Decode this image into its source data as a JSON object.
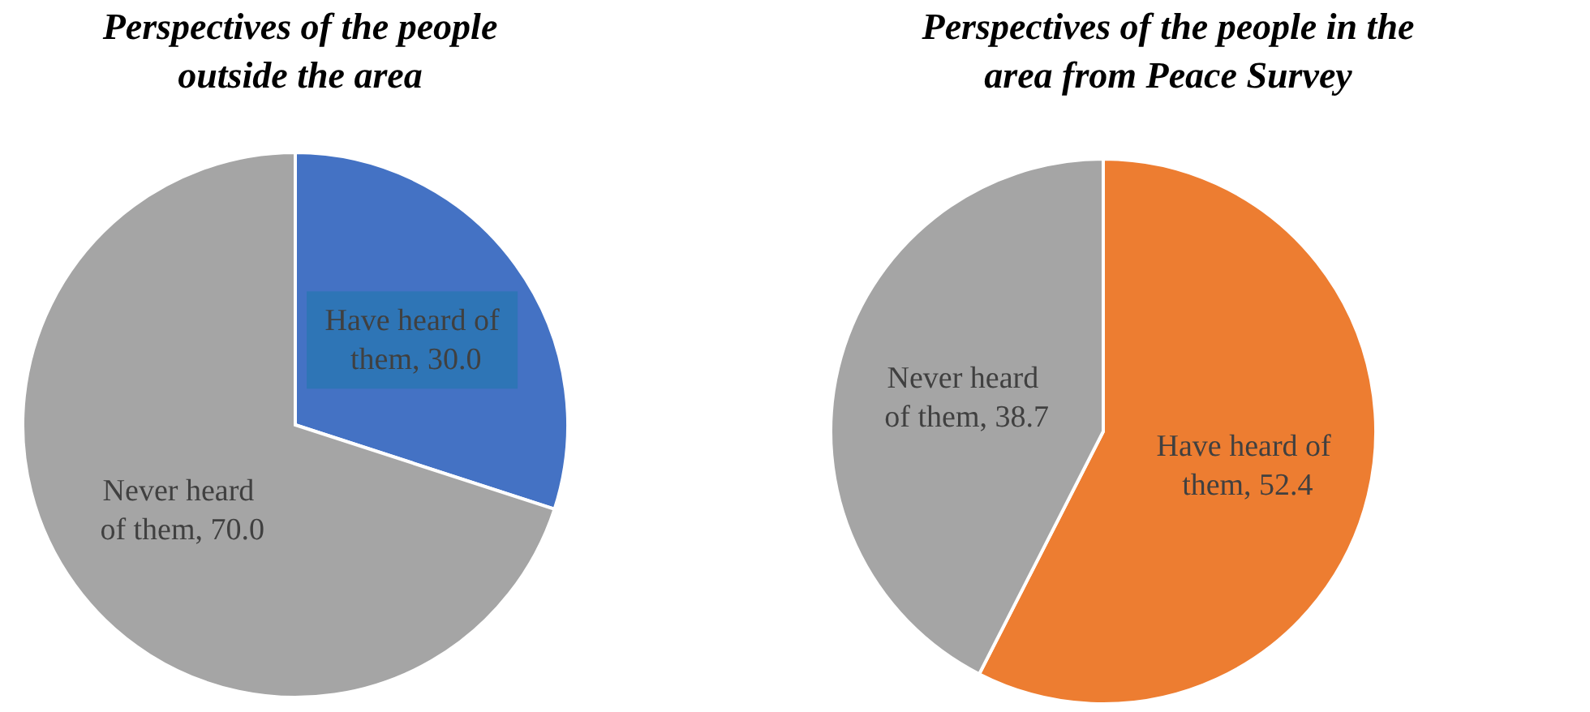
{
  "chart_data": [
    {
      "type": "pie",
      "title": "Perspectives of the people outside the area",
      "categories": [
        "Have heard of them",
        "Never heard of them"
      ],
      "values": [
        30.0,
        70.0
      ],
      "value_labels": [
        "30.0",
        "70.0"
      ],
      "colors": [
        "#4472c4",
        "#a5a5a5"
      ]
    },
    {
      "type": "pie",
      "title": "Perspectives of the people in the area from Peace Survey",
      "categories": [
        "Have heard of them",
        "Never heard of them"
      ],
      "values": [
        52.4,
        38.7
      ],
      "value_labels": [
        "52.4",
        "38.7"
      ],
      "colors": [
        "#ed7d31",
        "#a5a5a5"
      ]
    }
  ]
}
